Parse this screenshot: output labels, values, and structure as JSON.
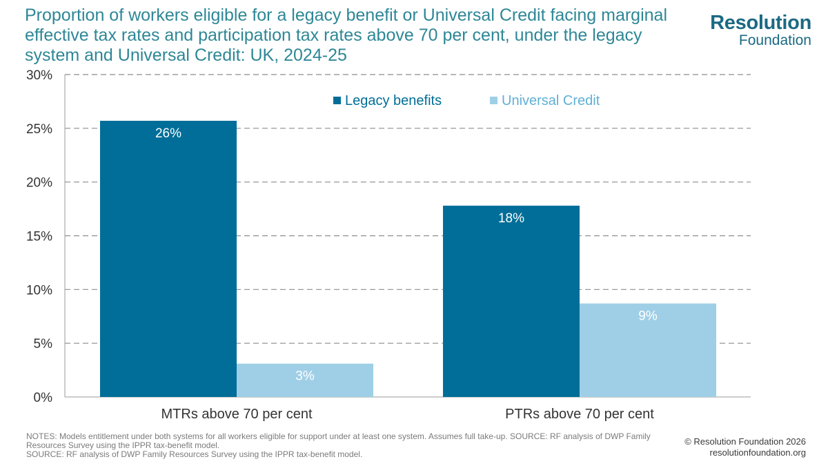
{
  "title": "Proportion of workers eligible for a legacy benefit or Universal Credit facing marginal effective tax rates and participation tax rates above 70 per cent, under the legacy system and Universal Credit: UK, 2024-25",
  "logo": {
    "line1": "Resolution",
    "line2": "Foundation"
  },
  "colors": {
    "legacy": "#006e98",
    "uc": "#9fcfe6",
    "title": "#2e8796",
    "grid": "#8c8c8c",
    "axis_text": "#333333"
  },
  "chart_data": {
    "type": "bar",
    "categories": [
      "MTRs above 70 per cent",
      "PTRs above 70 per cent"
    ],
    "series": [
      {
        "name": "Legacy benefits",
        "values": [
          25.7,
          17.8
        ],
        "labels": [
          "26%",
          "18%"
        ]
      },
      {
        "name": "Universal Credit",
        "values": [
          3.1,
          8.7
        ],
        "labels": [
          "3%",
          "9%"
        ]
      }
    ],
    "ylim": [
      0,
      30
    ],
    "yticks": [
      0,
      5,
      10,
      15,
      20,
      25,
      30
    ],
    "ytick_labels": [
      "0%",
      "5%",
      "10%",
      "15%",
      "20%",
      "25%",
      "30%"
    ],
    "grid": true,
    "legend_position": "top-right",
    "xlabel": "",
    "ylabel": ""
  },
  "notes": {
    "line1": "NOTES: Models entitlement under both systems for all workers eligible for support under at least one system. Assumes full take-up. SOURCE: RF analysis of DWP Family Resources Survey using the IPPR tax-benefit model.",
    "line2": "SOURCE: RF analysis of DWP Family Resources Survey using the IPPR tax-benefit model."
  },
  "copyright": "© Resolution Foundation 2026",
  "website": "resolutionfoundation.org"
}
